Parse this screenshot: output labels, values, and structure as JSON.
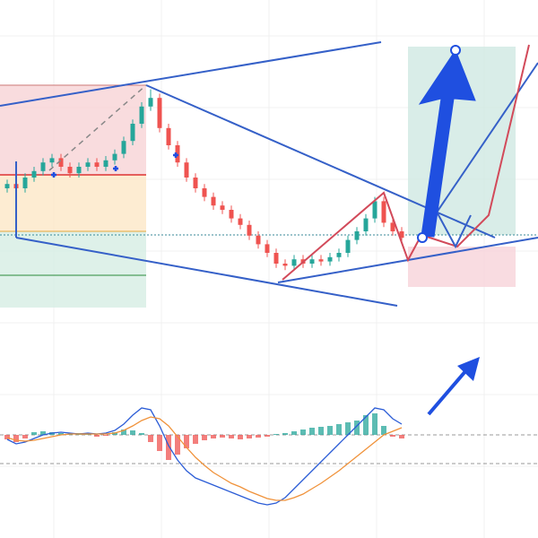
{
  "chart_data": [
    {
      "type": "candlestick",
      "open": [
        50,
        52,
        50,
        55,
        58,
        62,
        64,
        60,
        57,
        60,
        62,
        60,
        63,
        66,
        72,
        80,
        88,
        92,
        78,
        70,
        62,
        55,
        50,
        46,
        42,
        40,
        36,
        33,
        28,
        24,
        20,
        15,
        14,
        17,
        15,
        17,
        16,
        18,
        20,
        26,
        30,
        36,
        44,
        34,
        30
      ],
      "high": [
        54,
        54,
        57,
        60,
        64,
        66,
        66,
        62,
        62,
        64,
        64,
        65,
        68,
        74,
        82,
        90,
        96,
        94,
        80,
        72,
        64,
        57,
        52,
        48,
        44,
        42,
        38,
        35,
        30,
        26,
        22,
        17,
        19,
        19,
        19,
        19,
        20,
        22,
        28,
        32,
        38,
        46,
        46,
        36,
        32
      ],
      "low": [
        48,
        48,
        48,
        53,
        56,
        60,
        58,
        55,
        55,
        58,
        58,
        58,
        61,
        64,
        70,
        78,
        86,
        76,
        68,
        60,
        53,
        48,
        44,
        40,
        38,
        34,
        31,
        26,
        22,
        18,
        13,
        12,
        12,
        13,
        13,
        14,
        14,
        16,
        18,
        24,
        28,
        34,
        32,
        28,
        25
      ],
      "close": [
        52,
        50,
        55,
        58,
        62,
        64,
        60,
        57,
        60,
        62,
        60,
        63,
        66,
        72,
        80,
        88,
        92,
        78,
        70,
        62,
        55,
        50,
        46,
        42,
        40,
        36,
        33,
        28,
        24,
        20,
        15,
        14,
        17,
        15,
        17,
        16,
        18,
        20,
        26,
        30,
        36,
        44,
        34,
        30,
        27
      ],
      "up_color": "#26a69a",
      "down_color": "#ef5350",
      "ylim": [
        0,
        100
      ]
    },
    {
      "type": "macd",
      "histogram": [
        -5,
        -8,
        -4,
        3,
        4,
        3,
        2,
        1,
        2,
        2,
        -2,
        -1,
        3,
        6,
        5,
        2,
        -8,
        -18,
        -28,
        -22,
        -15,
        -10,
        -6,
        -4,
        -3,
        -4,
        -5,
        -4,
        -3,
        -2,
        1,
        2,
        4,
        6,
        8,
        9,
        10,
        12,
        14,
        16,
        22,
        24,
        10,
        -2,
        -4
      ],
      "macd": [
        -5,
        -10,
        -8,
        -4,
        0,
        2,
        3,
        2,
        1,
        2,
        1,
        2,
        5,
        12,
        22,
        30,
        28,
        10,
        -12,
        -28,
        -40,
        -48,
        -52,
        -56,
        -60,
        -64,
        -68,
        -72,
        -76,
        -78,
        -76,
        -70,
        -60,
        -50,
        -40,
        -30,
        -20,
        -10,
        0,
        10,
        20,
        30,
        28,
        18,
        12
      ],
      "signal": [
        -3,
        -6,
        -7,
        -6,
        -4,
        -2,
        0,
        1,
        1,
        1,
        1,
        1,
        2,
        5,
        10,
        16,
        20,
        18,
        10,
        -2,
        -14,
        -25,
        -34,
        -42,
        -48,
        -54,
        -58,
        -63,
        -67,
        -71,
        -73,
        -73,
        -70,
        -66,
        -60,
        -54,
        -47,
        -40,
        -32,
        -24,
        -16,
        -8,
        0,
        4,
        8
      ],
      "macd_color": "#2b5cd6",
      "signal_color": "#f0923a",
      "up_color": "#26a69a",
      "down_color": "#ef5350",
      "ylim": [
        -100,
        100
      ]
    }
  ]
}
